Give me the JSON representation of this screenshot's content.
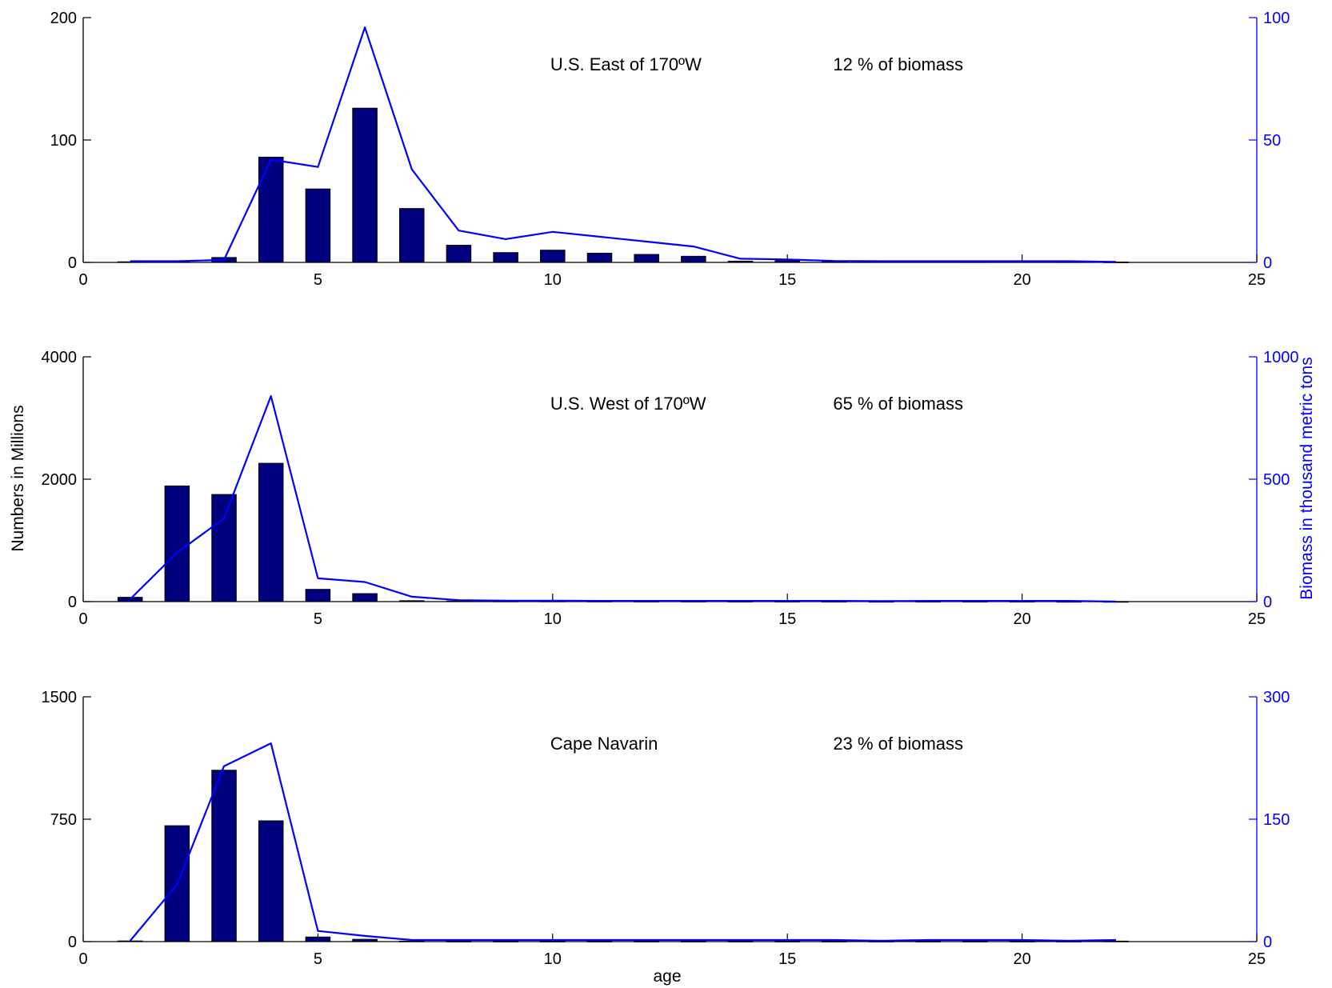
{
  "figure": {
    "xlabel": "age",
    "ylabel_left": "Numbers in Millions",
    "ylabel_right": "Biomass in thousand metric tons"
  },
  "chart_data": [
    {
      "type": "bar",
      "title": "",
      "region_label": "U.S. East of 170ºW",
      "biomass_label": "12 % of biomass",
      "xlim": [
        0,
        25
      ],
      "xticks": [
        0,
        5,
        10,
        15,
        20,
        25
      ],
      "ylim": [
        0,
        200
      ],
      "yticks": [
        0,
        100,
        200
      ],
      "y2lim": [
        0,
        100
      ],
      "y2ticks": [
        0,
        50,
        100
      ],
      "bar_color": "#00007f",
      "line_color": "#0000ff",
      "x": [
        1,
        2,
        3,
        4,
        5,
        6,
        7,
        8,
        9,
        10,
        11,
        12,
        13,
        14,
        15,
        16,
        17,
        18,
        19,
        20,
        21,
        22
      ],
      "numbers": [
        0.5,
        1,
        4,
        86,
        60,
        126,
        44,
        14,
        8,
        10,
        7.5,
        6.5,
        5,
        1,
        1.5,
        1,
        0.8,
        0.6,
        0.5,
        0.7,
        0.5,
        0.3
      ],
      "biomass": [
        0.5,
        0.5,
        1,
        42,
        39,
        96,
        38,
        13,
        9.5,
        12.5,
        10.5,
        8.5,
        6.5,
        1.5,
        1.2,
        0.6,
        0.5,
        0.5,
        0.5,
        0.5,
        0.5,
        0.2
      ]
    },
    {
      "type": "bar",
      "title": "",
      "region_label": "U.S. West of 170ºW",
      "biomass_label": "65 % of biomass",
      "xlim": [
        0,
        25
      ],
      "xticks": [
        0,
        5,
        10,
        15,
        20,
        25
      ],
      "ylim": [
        0,
        4000
      ],
      "yticks": [
        0,
        2000,
        4000
      ],
      "y2lim": [
        0,
        1000
      ],
      "y2ticks": [
        0,
        500,
        1000
      ],
      "bar_color": "#00007f",
      "line_color": "#0000ff",
      "x": [
        1,
        2,
        3,
        4,
        5,
        6,
        7,
        8,
        9,
        10,
        11,
        12,
        13,
        14,
        15,
        16,
        17,
        18,
        19,
        20,
        21,
        22
      ],
      "numbers": [
        70,
        1890,
        1750,
        2260,
        200,
        130,
        15,
        10,
        8,
        8,
        6,
        5,
        5,
        4,
        4,
        3,
        2,
        3,
        3,
        3,
        2,
        1
      ],
      "biomass": [
        10,
        200,
        340,
        840,
        95,
        80,
        20,
        6,
        4,
        4,
        3,
        3,
        3,
        3,
        3,
        3,
        2,
        3,
        3,
        3,
        3,
        0
      ]
    },
    {
      "type": "bar",
      "title": "",
      "region_label": "Cape Navarin",
      "biomass_label": "23 % of biomass",
      "xlim": [
        0,
        25
      ],
      "xticks": [
        0,
        5,
        10,
        15,
        20,
        25
      ],
      "ylim": [
        0,
        1500
      ],
      "yticks": [
        0,
        750,
        1500
      ],
      "y2lim": [
        0,
        300
      ],
      "y2ticks": [
        0,
        150,
        300
      ],
      "bar_color": "#00007f",
      "line_color": "#0000ff",
      "x": [
        1,
        2,
        3,
        4,
        5,
        6,
        7,
        8,
        9,
        10,
        11,
        12,
        13,
        14,
        15,
        16,
        17,
        18,
        19,
        20,
        21,
        22
      ],
      "numbers": [
        4,
        710,
        1050,
        740,
        28,
        14,
        3,
        2,
        2,
        2,
        2,
        2,
        2,
        2,
        2,
        2,
        2,
        2,
        2,
        2,
        2,
        3
      ],
      "biomass": [
        1,
        70,
        215,
        243,
        13,
        7,
        2,
        2,
        2,
        2,
        2,
        2,
        2,
        2,
        2,
        2,
        1,
        2,
        2,
        2,
        1,
        2
      ]
    }
  ]
}
